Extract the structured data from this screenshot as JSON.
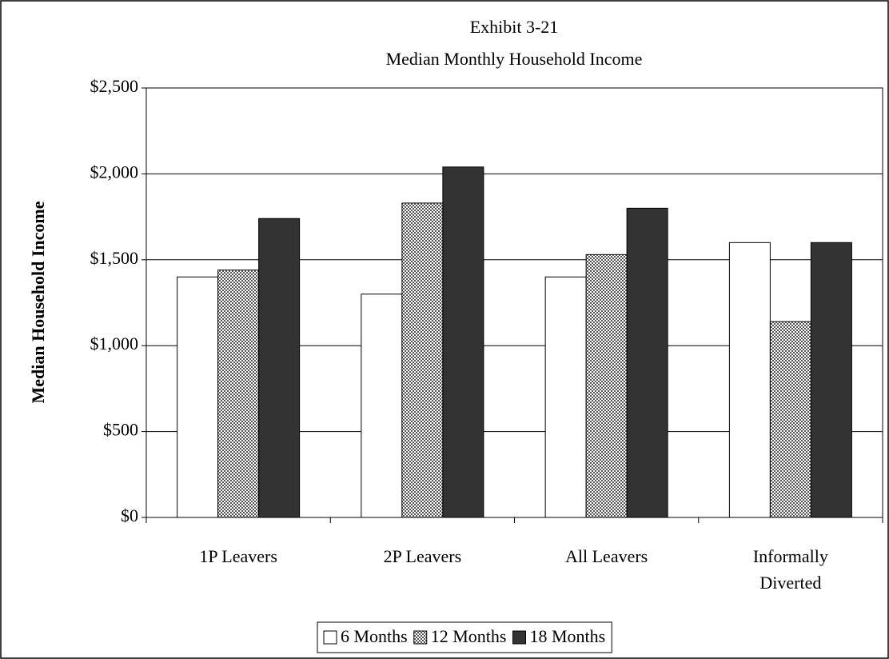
{
  "chart_data": {
    "type": "bar",
    "title": "Exhibit 3-21",
    "subtitle": "Median Monthly Household Income",
    "y_label": "Median Household Income",
    "categories": [
      "1P Leavers",
      "2P Leavers",
      "All Leavers",
      "Informally Diverted"
    ],
    "series": [
      {
        "name": "6 Months",
        "color": "#ffffff",
        "values": [
          1400,
          1300,
          1400,
          1600
        ]
      },
      {
        "name": "12 Months",
        "color": "#555555",
        "pattern": "checker",
        "values": [
          1440,
          1830,
          1530,
          1140
        ]
      },
      {
        "name": "18 Months",
        "color": "#333333",
        "values": [
          1740,
          2040,
          1800,
          1600
        ]
      }
    ],
    "ylim": [
      0,
      2500
    ],
    "yticks": [
      {
        "value": 0,
        "label": "$0"
      },
      {
        "value": 500,
        "label": "$500"
      },
      {
        "value": 1000,
        "label": "$1,000"
      },
      {
        "value": 1500,
        "label": "$1,500"
      },
      {
        "value": 2000,
        "label": "$2,000"
      },
      {
        "value": 2500,
        "label": "$2,500"
      }
    ],
    "grid": true,
    "legend": "bottom"
  }
}
